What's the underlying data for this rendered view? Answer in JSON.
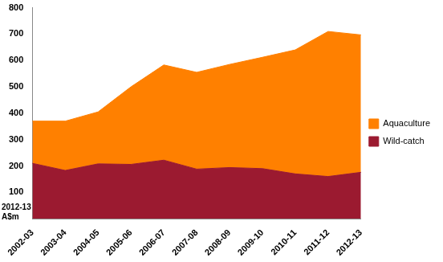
{
  "chart_data": {
    "type": "area",
    "ylabel": "2012-13 A$m",
    "categories": [
      "2002-03",
      "2003-04",
      "2004-05",
      "2005-06",
      "2006-07",
      "2007-08",
      "2008-09",
      "2009-10",
      "2010-11",
      "2011-12",
      "2012-13"
    ],
    "series": [
      {
        "name": "Wild-catch",
        "color": "#9b1a30",
        "values": [
          210,
          183,
          208,
          206,
          222,
          188,
          194,
          190,
          170,
          160,
          176
        ]
      },
      {
        "name": "Aquaculture",
        "color": "#ff8000",
        "values": [
          160,
          187,
          197,
          294,
          361,
          367,
          391,
          422,
          470,
          550,
          521
        ]
      }
    ],
    "stacked": true,
    "ylim": [
      0,
      800
    ],
    "yticks": [
      100,
      200,
      300,
      400,
      500,
      600,
      700,
      800
    ],
    "grid": false,
    "legend": "right"
  }
}
